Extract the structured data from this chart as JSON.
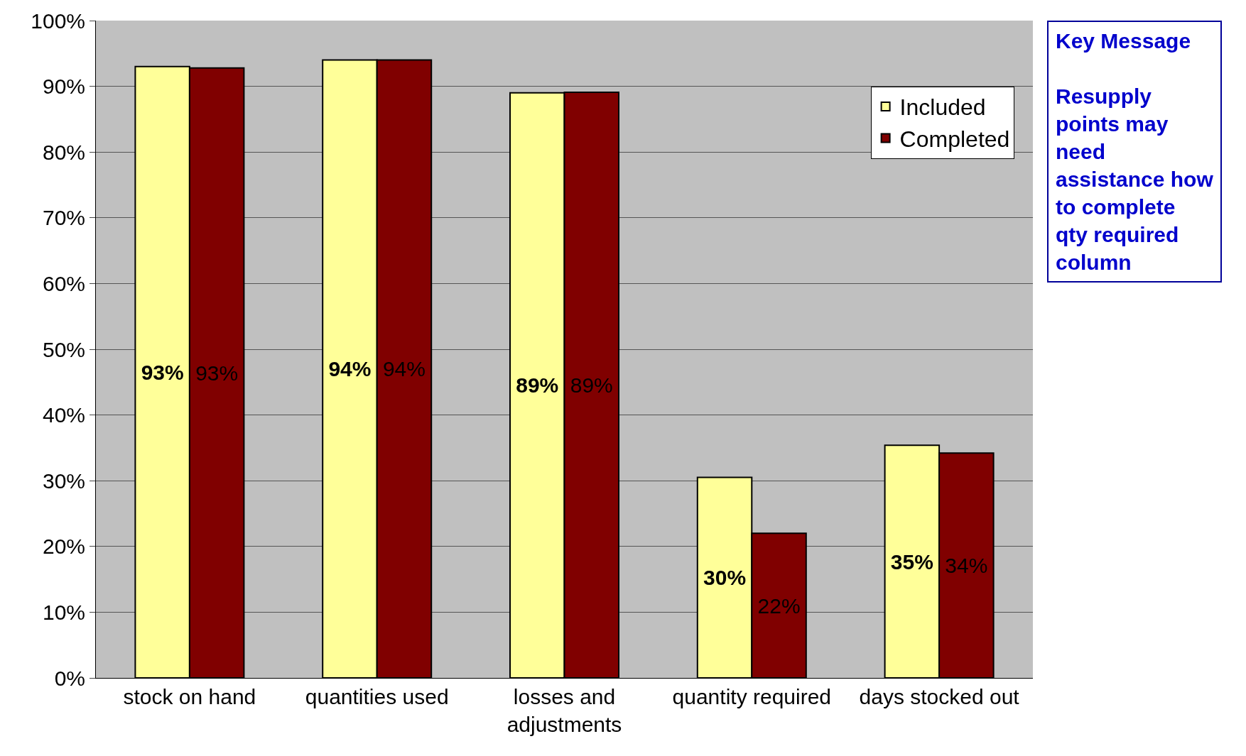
{
  "chart_data": {
    "type": "bar",
    "categories": [
      "stock on hand",
      "quantities used",
      "losses and adjustments",
      "quantity required",
      "days stocked out"
    ],
    "series": [
      {
        "name": "Included",
        "color": "#ffff99",
        "values": [
          93,
          94,
          89,
          30.5,
          35.4
        ],
        "value_labels": [
          "93%",
          "94%",
          "89%",
          "30%",
          "35%"
        ]
      },
      {
        "name": "Completed",
        "color": "#800000",
        "values": [
          92.8,
          94,
          89.1,
          22,
          34.2
        ],
        "value_labels": [
          "93%",
          "94%",
          "89%",
          "22%",
          "34%"
        ]
      }
    ],
    "ylim": [
      0,
      100
    ],
    "yticks": [
      {
        "value": 0,
        "label": "0%"
      },
      {
        "value": 10,
        "label": "10%"
      },
      {
        "value": 20,
        "label": "20%"
      },
      {
        "value": 30,
        "label": "30%"
      },
      {
        "value": 40,
        "label": "40%"
      },
      {
        "value": 50,
        "label": "50%"
      },
      {
        "value": 60,
        "label": "60%"
      },
      {
        "value": 70,
        "label": "70%"
      },
      {
        "value": 80,
        "label": "80%"
      },
      {
        "value": 90,
        "label": "90%"
      },
      {
        "value": 100,
        "label": "100%"
      }
    ],
    "grid": "y",
    "legend": "top right",
    "annotations": [
      "Key Message",
      "Resupply points may need assistance how to complete qty required column"
    ]
  }
}
